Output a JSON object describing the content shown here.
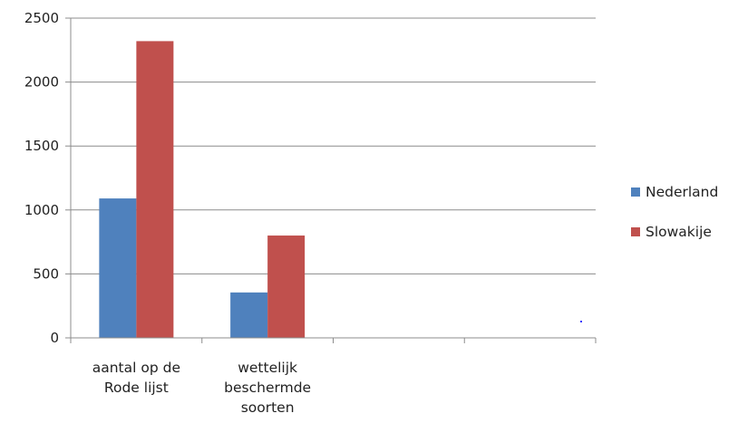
{
  "chart_data": {
    "type": "bar",
    "title": "",
    "xlabel": "",
    "ylabel": "",
    "categories": [
      [
        "aantal op de",
        "Rode lijst"
      ],
      [
        "wettelijk",
        "beschermde",
        "soorten"
      ],
      [],
      []
    ],
    "series": [
      {
        "name": "Nederland",
        "color": "#4F81BD",
        "values": [
          1090,
          355,
          null,
          null
        ]
      },
      {
        "name": "Slowakije",
        "color": "#C0504D",
        "values": [
          2320,
          800,
          null,
          null
        ]
      }
    ],
    "ylim": [
      0,
      2500
    ],
    "yticks": [
      0,
      500,
      1000,
      1500,
      2000,
      2500
    ],
    "grid": true,
    "legend_position": "right"
  }
}
